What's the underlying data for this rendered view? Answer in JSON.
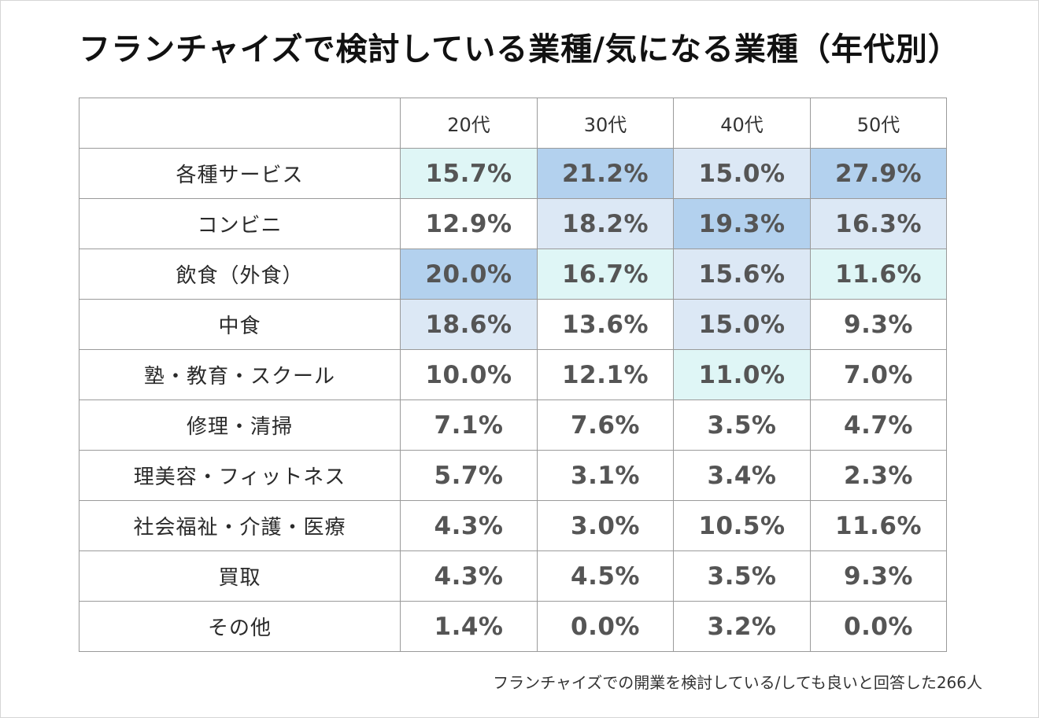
{
  "chart_data": {
    "type": "table",
    "title": "フランチャイズで検討している業種/気になる業種（年代別）",
    "columns": [
      "20代",
      "30代",
      "40代",
      "50代"
    ],
    "rows": [
      {
        "label": "各種サービス",
        "values": [
          "15.7%",
          "21.2%",
          "15.0%",
          "27.9%"
        ],
        "shade": [
          1,
          3,
          2,
          3
        ]
      },
      {
        "label": "コンビニ",
        "values": [
          "12.9%",
          "18.2%",
          "19.3%",
          "16.3%"
        ],
        "shade": [
          0,
          2,
          3,
          2
        ]
      },
      {
        "label": "飲食（外食）",
        "values": [
          "20.0%",
          "16.7%",
          "15.6%",
          "11.6%"
        ],
        "shade": [
          3,
          1,
          2,
          1
        ]
      },
      {
        "label": "中食",
        "values": [
          "18.6%",
          "13.6%",
          "15.0%",
          "9.3%"
        ],
        "shade": [
          2,
          0,
          2,
          0
        ]
      },
      {
        "label": "塾・教育・スクール",
        "values": [
          "10.0%",
          "12.1%",
          "11.0%",
          "7.0%"
        ],
        "shade": [
          0,
          0,
          1,
          0
        ]
      },
      {
        "label": "修理・清掃",
        "values": [
          "7.1%",
          "7.6%",
          "3.5%",
          "4.7%"
        ],
        "shade": [
          0,
          0,
          0,
          0
        ]
      },
      {
        "label": "理美容・フィットネス",
        "values": [
          "5.7%",
          "3.1%",
          "3.4%",
          "2.3%"
        ],
        "shade": [
          0,
          0,
          0,
          0
        ]
      },
      {
        "label": "社会福祉・介護・医療",
        "values": [
          "4.3%",
          "3.0%",
          "10.5%",
          "11.6%"
        ],
        "shade": [
          0,
          0,
          0,
          0
        ]
      },
      {
        "label": "買取",
        "values": [
          "4.3%",
          "4.5%",
          "3.5%",
          "9.3%"
        ],
        "shade": [
          0,
          0,
          0,
          0
        ]
      },
      {
        "label": "その他",
        "values": [
          "1.4%",
          "0.0%",
          "3.2%",
          "0.0%"
        ],
        "shade": [
          0,
          0,
          0,
          0
        ]
      }
    ],
    "shade_colors": {
      "1": "#dff6f6",
      "2": "#dce8f5",
      "3": "#b3d1ee"
    },
    "footnote": "フランチャイズでの開業を検討している/しても良いと回答した266人"
  }
}
